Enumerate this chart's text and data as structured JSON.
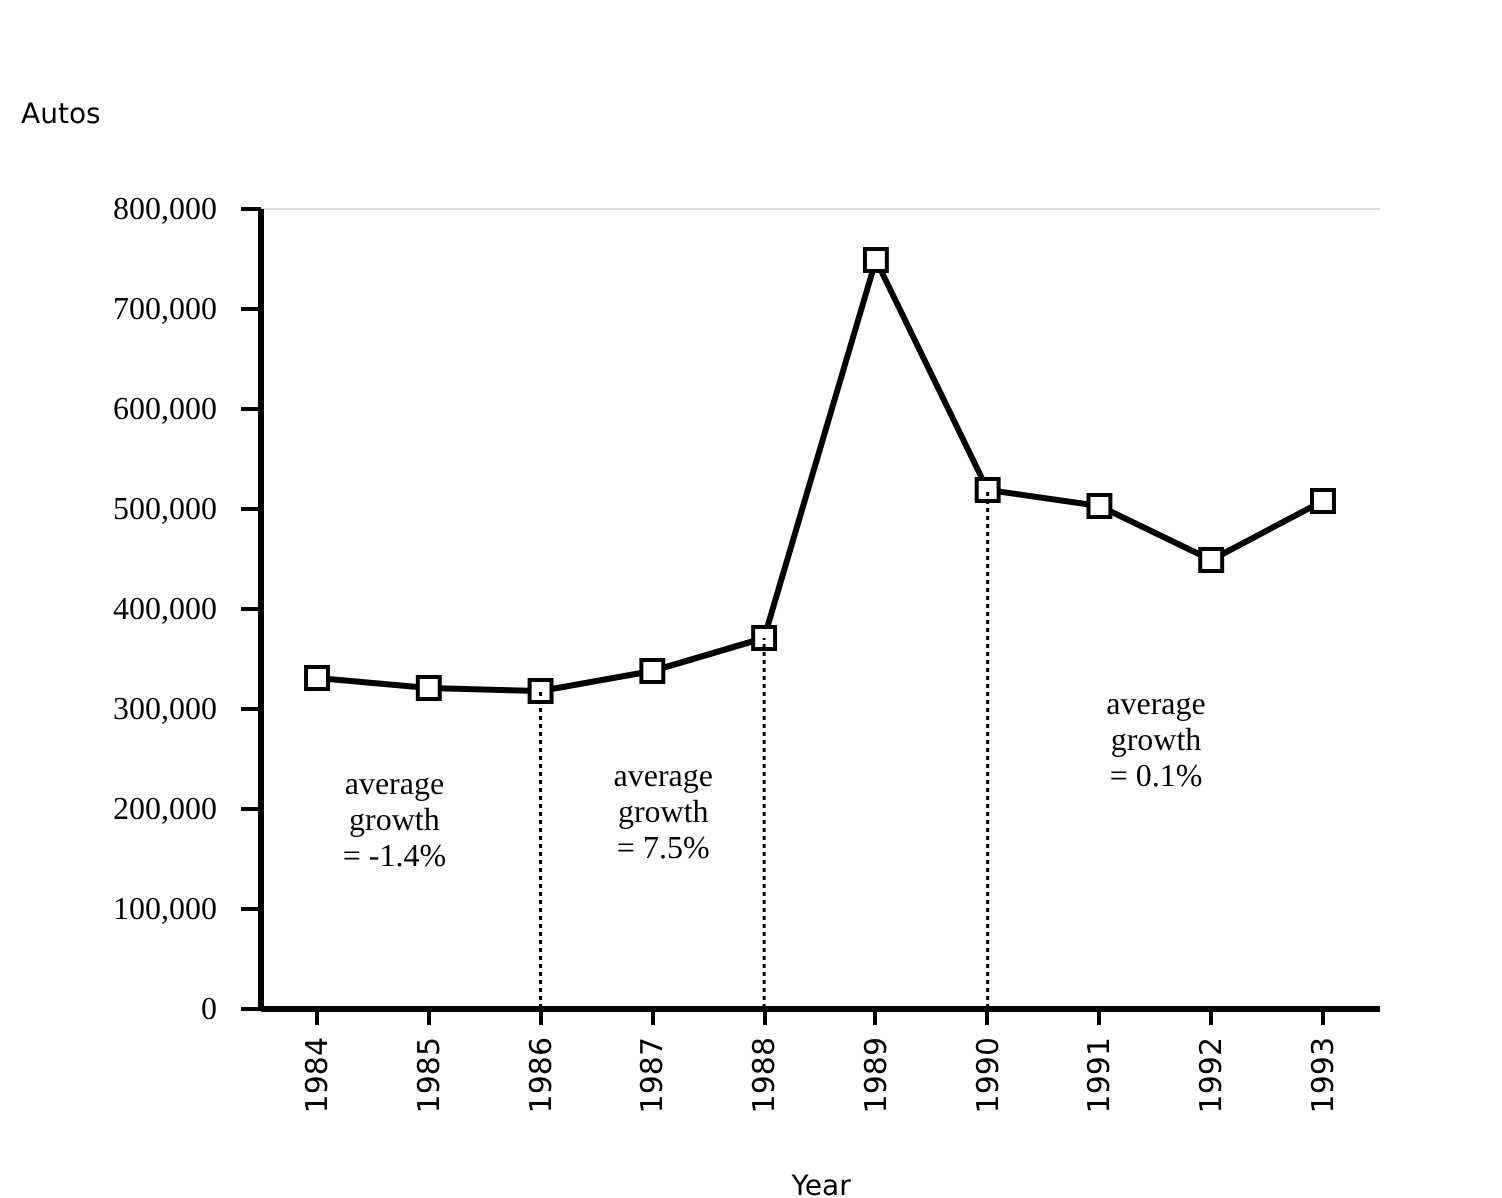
{
  "chart_data": {
    "type": "line",
    "xlabel": "Year",
    "ylabel": "Autos",
    "categories": [
      "1984",
      "1985",
      "1986",
      "1987",
      "1988",
      "1989",
      "1990",
      "1991",
      "1992",
      "1993"
    ],
    "series": [
      {
        "color": "#000000",
        "values": [
          330000,
          320000,
          317000,
          337000,
          370000,
          748000,
          518000,
          502000,
          448000,
          507000
        ]
      }
    ],
    "ylim": [
      0,
      800000
    ],
    "yticks": [
      {
        "value": 0,
        "label": "0"
      },
      {
        "value": 100000,
        "label": "100,000"
      },
      {
        "value": 200000,
        "label": "200,000"
      },
      {
        "value": 300000,
        "label": "300,000"
      },
      {
        "value": 400000,
        "label": "400,000"
      },
      {
        "value": 500000,
        "label": "500,000"
      },
      {
        "value": 600000,
        "label": "600,000"
      },
      {
        "value": 700000,
        "label": "700,000"
      },
      {
        "value": 800000,
        "label": "800,000"
      }
    ],
    "ref_lines": [
      {
        "axis": "x",
        "value": "1986",
        "line_style": "dotted"
      },
      {
        "axis": "x",
        "value": "1988",
        "line_style": "dotted"
      },
      {
        "axis": "x",
        "value": "1990",
        "line_style": "dotted"
      }
    ],
    "annotations": [
      "average\ngrowth\n= -1.4%",
      "average\ngrowth\n= 7.5%",
      "average\ngrowth\n= 0.1%"
    ],
    "marker": "square",
    "line_style": "solid",
    "grid": false
  }
}
